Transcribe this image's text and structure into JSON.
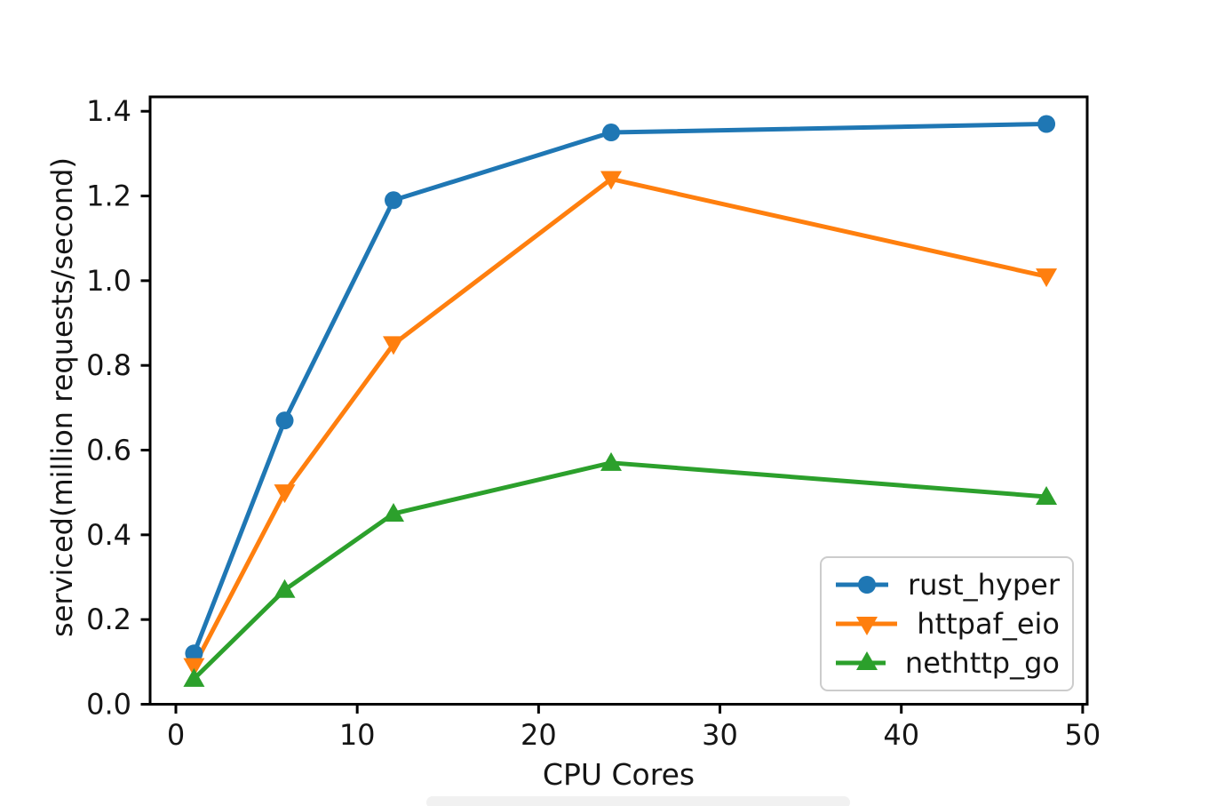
{
  "page": {
    "background": "#ffffff"
  },
  "chart_data": {
    "type": "line",
    "title": "",
    "xlabel": "CPU Cores",
    "ylabel": "serviced(million requests/second)",
    "x": [
      1,
      6,
      12,
      24,
      48
    ],
    "series": [
      {
        "name": "rust_hyper",
        "color": "#1f77b4",
        "marker": "circle",
        "values": [
          0.12,
          0.67,
          1.19,
          1.35,
          1.37
        ]
      },
      {
        "name": "httpaf_eio",
        "color": "#ff7f0e",
        "marker": "triangle-down",
        "values": [
          0.09,
          0.5,
          0.85,
          1.24,
          1.01
        ]
      },
      {
        "name": "nethttp_go",
        "color": "#2ca02c",
        "marker": "triangle-up",
        "values": [
          0.06,
          0.27,
          0.45,
          0.57,
          0.49
        ]
      }
    ],
    "xticks": [
      0,
      10,
      20,
      30,
      40,
      50
    ],
    "yticks": [
      0.0,
      0.2,
      0.4,
      0.6,
      0.8,
      1.0,
      1.2,
      1.4
    ],
    "xlim": [
      -1.42,
      50.25
    ],
    "ylim": [
      0,
      1.434
    ],
    "grid": false,
    "legend_position": "lower right",
    "axis_color": "#000000",
    "text_color": "#151515"
  }
}
